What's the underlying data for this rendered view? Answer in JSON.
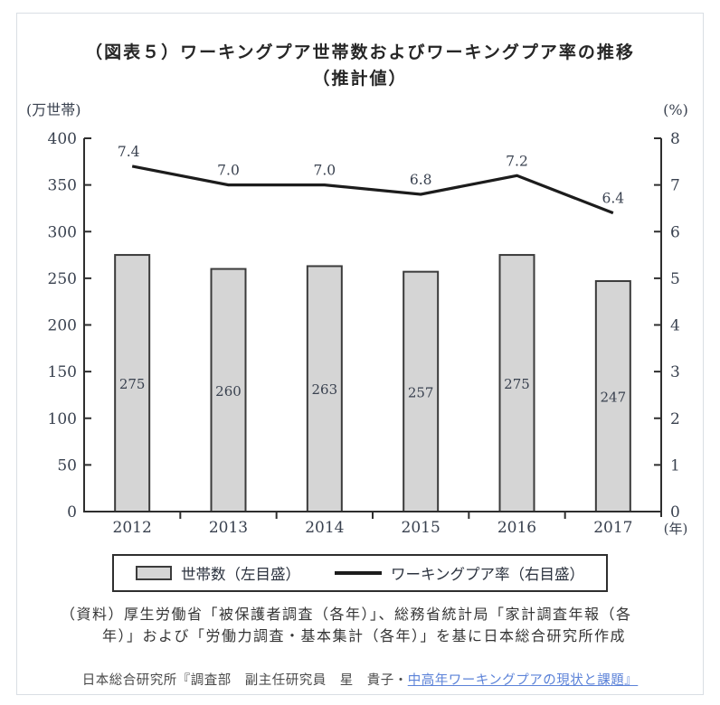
{
  "figure": {
    "title_line1": "（図表５）ワーキングプア世帯数およびワーキングプア率の推移",
    "title_line2": "（推計値）"
  },
  "chart_data": {
    "type": "bar",
    "categories": [
      "2012",
      "2013",
      "2014",
      "2015",
      "2016",
      "2017"
    ],
    "series": [
      {
        "name": "世帯数（左目盛）",
        "type": "bar",
        "axis": "left",
        "values": [
          275,
          260,
          263,
          257,
          275,
          247
        ]
      },
      {
        "name": "ワーキングプア率（右目盛）",
        "type": "line",
        "axis": "right",
        "values": [
          7.4,
          7.0,
          7.0,
          6.8,
          7.2,
          6.4
        ]
      }
    ],
    "left_axis": {
      "label": "(万世帯)",
      "min": 0,
      "max": 400,
      "step": 50
    },
    "right_axis": {
      "label": "(%)",
      "min": 0,
      "max": 8,
      "step": 1
    },
    "x_axis_unit": "(年)",
    "grid": "off",
    "legend_position": "bottom",
    "colors": {
      "bar_fill": "#d5d5d5",
      "bar_stroke": "#3b3b3b",
      "line": "#1c1c1c",
      "axis": "#2e2e2e",
      "text": "#39414f"
    }
  },
  "legend": {
    "bar_label": "世帯数（左目盛）",
    "line_label": "ワーキングプア率（右目盛）"
  },
  "source": {
    "line1": "（資料）厚生労働省「被保護者調査（各年）」、総務省統計局「家計調査年報（各",
    "line2": "年）」および「労働力調査・基本集計（各年）」を基に日本総合研究所作成"
  },
  "footer": {
    "prefix": "日本総合研究所『調査部　副主任研究員　星　貴子・",
    "link_text": "中高年ワーキングプアの現状と課題』",
    "link_color": "#5b82d8"
  }
}
